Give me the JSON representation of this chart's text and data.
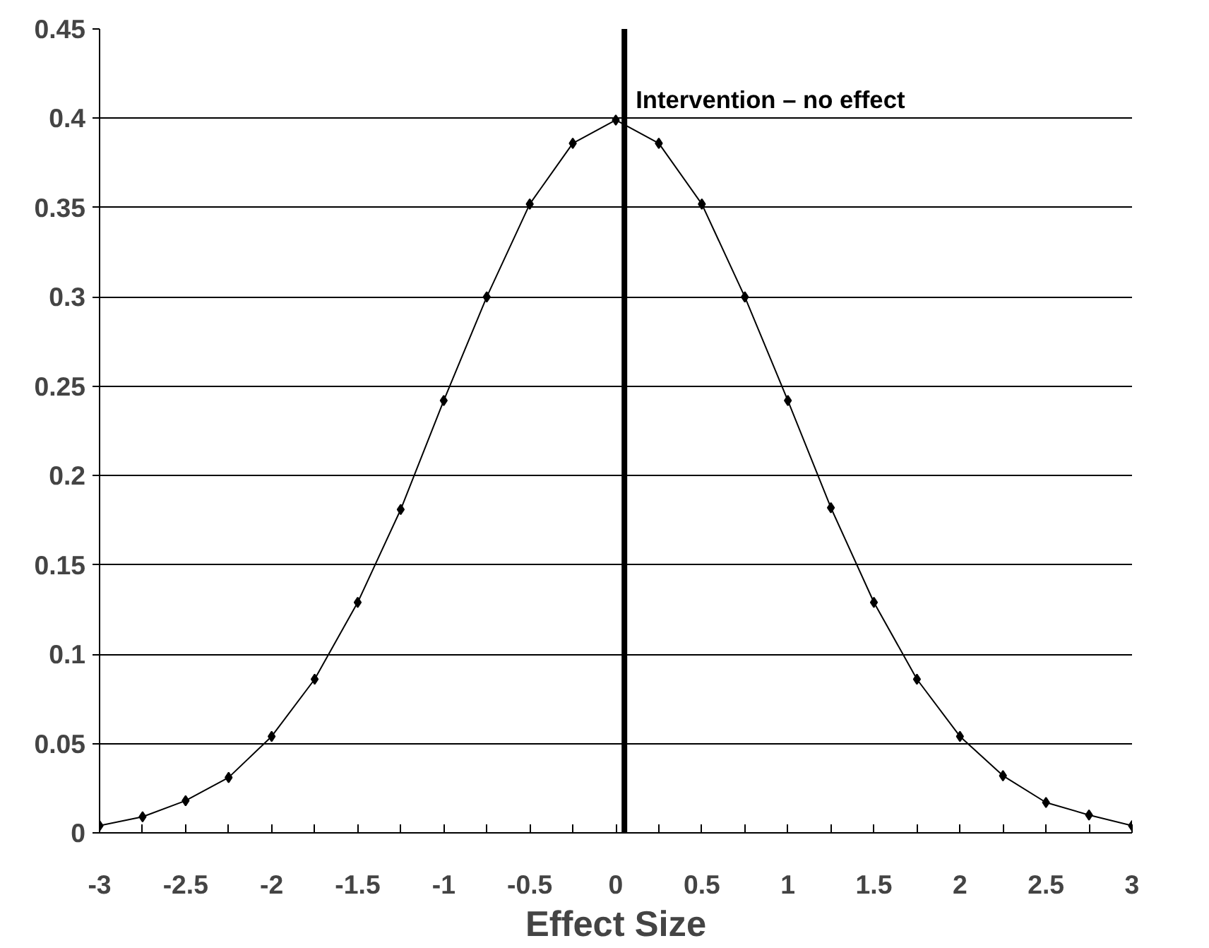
{
  "chart_data": {
    "type": "line",
    "xlabel": "Effect Size",
    "x": [
      -3,
      -2.75,
      -2.5,
      -2.25,
      -2,
      -1.75,
      -1.5,
      -1.25,
      -1,
      -0.75,
      -0.5,
      -0.25,
      0,
      0.25,
      0.5,
      0.75,
      1,
      1.25,
      1.5,
      1.75,
      2,
      2.25,
      2.5,
      2.75,
      3
    ],
    "series": [
      {
        "color": "#000000",
        "values": [
          0.004,
          0.009,
          0.018,
          0.031,
          0.054,
          0.086,
          0.129,
          0.181,
          0.242,
          0.3,
          0.352,
          0.386,
          0.399,
          0.386,
          0.352,
          0.3,
          0.242,
          0.182,
          0.129,
          0.086,
          0.054,
          0.032,
          0.017,
          0.01,
          0.004
        ]
      }
    ],
    "xlim": [
      -3,
      3
    ],
    "xticks": [
      {
        "value": -3,
        "label": "-3"
      },
      {
        "value": -2.75,
        "label": null
      },
      {
        "value": -2.5,
        "label": "-2.5"
      },
      {
        "value": -2.25,
        "label": null
      },
      {
        "value": -2,
        "label": "-2"
      },
      {
        "value": -1.75,
        "label": null
      },
      {
        "value": -1.5,
        "label": "-1.5"
      },
      {
        "value": -1.25,
        "label": null
      },
      {
        "value": -1,
        "label": "-1"
      },
      {
        "value": -0.75,
        "label": null
      },
      {
        "value": -0.5,
        "label": "-0.5"
      },
      {
        "value": -0.25,
        "label": null
      },
      {
        "value": 0,
        "label": "0"
      },
      {
        "value": 0.25,
        "label": null
      },
      {
        "value": 0.5,
        "label": "0.5"
      },
      {
        "value": 0.75,
        "label": null
      },
      {
        "value": 1,
        "label": "1"
      },
      {
        "value": 1.25,
        "label": null
      },
      {
        "value": 1.5,
        "label": "1.5"
      },
      {
        "value": 1.75,
        "label": null
      },
      {
        "value": 2,
        "label": "2"
      },
      {
        "value": 2.25,
        "label": null
      },
      {
        "value": 2.5,
        "label": "2.5"
      },
      {
        "value": 2.75,
        "label": null
      },
      {
        "value": 3,
        "label": "3"
      }
    ],
    "ylim": [
      0,
      0.45
    ],
    "yticks": [
      0,
      0.05,
      0.1,
      0.15,
      0.2,
      0.25,
      0.3,
      0.35,
      0.4,
      0.45
    ],
    "grid": "y",
    "marker": "diamond",
    "line_style": "solid",
    "ref_lines": [
      {
        "axis": "x",
        "value": 0.05,
        "label": "Intervention – no effect",
        "color": "#000000"
      }
    ]
  }
}
